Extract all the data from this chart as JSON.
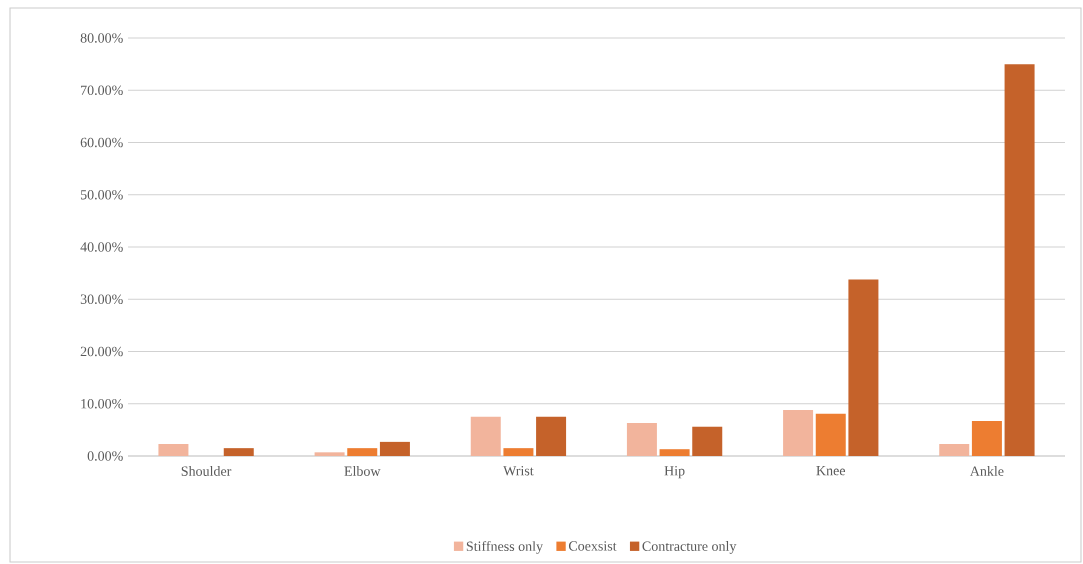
{
  "chart_data": {
    "type": "bar",
    "categories": [
      "Shoulder",
      "Elbow",
      "Wrist",
      "Hip",
      "Knee",
      "Ankle"
    ],
    "series": [
      {
        "name": "Stiffness only",
        "color": "#f2b49c",
        "values": [
          2.3,
          0.7,
          7.5,
          6.3,
          8.8,
          2.3
        ]
      },
      {
        "name": "Coexsist",
        "color": "#ed7d31",
        "values": [
          0,
          1.5,
          1.5,
          1.3,
          8.1,
          6.7
        ]
      },
      {
        "name": "Contracture only",
        "color": "#c5622a",
        "values": [
          1.5,
          2.7,
          7.5,
          5.6,
          33.8,
          75.0
        ]
      }
    ],
    "ylim": [
      0,
      80
    ],
    "yticks": [
      {
        "value": 0,
        "label": "0.00%"
      },
      {
        "value": 10,
        "label": "10.00%"
      },
      {
        "value": 20,
        "label": "20.00%"
      },
      {
        "value": 30,
        "label": "30.00%"
      },
      {
        "value": 40,
        "label": "40.00%"
      },
      {
        "value": 50,
        "label": "50.00%"
      },
      {
        "value": 60,
        "label": "60.00%"
      },
      {
        "value": 70,
        "label": "70.00%"
      },
      {
        "value": 80,
        "label": "80.00%"
      }
    ],
    "grid": "y",
    "legend": "bottom"
  }
}
